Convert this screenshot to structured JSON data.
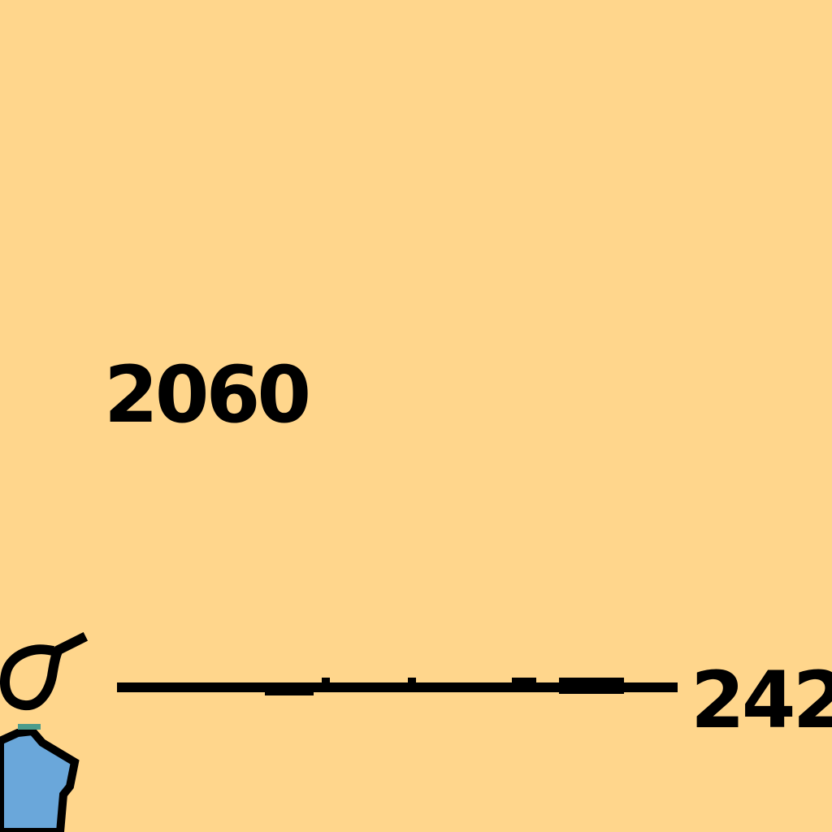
{
  "map": {
    "background_color": "#FFD68C",
    "water_color": "#6AA7DA",
    "outline_color": "#000000",
    "shoreline_accent_color": "#4B9C8C",
    "labels": {
      "elevation": "2060",
      "scale_value": "242"
    },
    "icons": {
      "sigma": "sigma-symbol-icon"
    }
  }
}
